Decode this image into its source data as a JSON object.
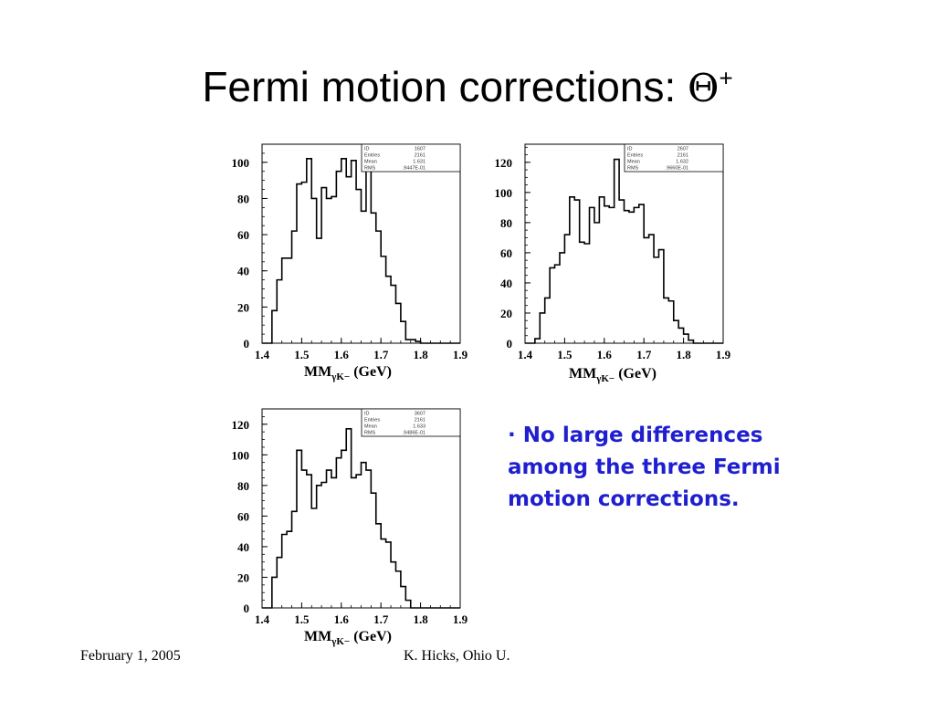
{
  "slide": {
    "title_text": "Fermi motion corrections: ",
    "title_symbol": "Θ",
    "title_sup": "+",
    "bullet_marker": "·",
    "bullet_text": "No large differences among the three Fermi motion corrections.",
    "footer_left": "February 1, 2005",
    "footer_center": "K. Hicks, Ohio U.",
    "colors": {
      "bullet": "#1f1fd0",
      "title": "#000000"
    }
  },
  "chart_data": [
    {
      "type": "bar",
      "xlabel_main": "MM",
      "xlabel_sub": "γK−",
      "xlabel_unit": " (GeV)",
      "xlim": [
        1.4,
        1.9
      ],
      "ylim": [
        0,
        110
      ],
      "xticks": [
        1.4,
        1.5,
        1.6,
        1.7,
        1.8,
        1.9
      ],
      "yticks": [
        0,
        20,
        40,
        60,
        80,
        100
      ],
      "x_start": 1.4,
      "bin_width": 0.0125,
      "values": [
        0,
        0,
        18,
        35,
        47,
        47,
        62,
        88,
        89,
        102,
        80,
        58,
        86,
        80,
        81,
        95,
        102,
        92,
        101,
        85,
        73,
        98,
        72,
        62,
        48,
        37,
        32,
        22,
        12,
        2,
        2,
        1,
        0,
        0,
        0,
        0,
        0,
        0,
        0,
        0
      ],
      "stats": [
        {
          "label": "ID",
          "value": "1607"
        },
        {
          "label": "Entries",
          "value": "2161"
        },
        {
          "label": "Mean",
          "value": "1.631"
        },
        {
          "label": "RMS",
          "value": ".9447E-01"
        }
      ]
    },
    {
      "type": "bar",
      "xlabel_main": "MM",
      "xlabel_sub": "γK−",
      "xlabel_unit": " (GeV)",
      "xlim": [
        1.4,
        1.9
      ],
      "ylim": [
        0,
        132
      ],
      "xticks": [
        1.4,
        1.5,
        1.6,
        1.7,
        1.8,
        1.9
      ],
      "yticks": [
        0,
        20,
        40,
        60,
        80,
        100,
        120
      ],
      "x_start": 1.4,
      "bin_width": 0.0125,
      "values": [
        0,
        0,
        3,
        20,
        30,
        50,
        52,
        60,
        72,
        97,
        95,
        67,
        66,
        90,
        80,
        97,
        91,
        90,
        122,
        95,
        88,
        87,
        90,
        92,
        70,
        72,
        57,
        62,
        30,
        28,
        15,
        10,
        6,
        2,
        0,
        0,
        0,
        0,
        0,
        0
      ],
      "stats": [
        {
          "label": "ID",
          "value": "2607"
        },
        {
          "label": "Entries",
          "value": "2161"
        },
        {
          "label": "Mean",
          "value": "1.632"
        },
        {
          "label": "RMS",
          "value": ".9660E-01"
        }
      ]
    },
    {
      "type": "bar",
      "xlabel_main": "MM",
      "xlabel_sub": "γK−",
      "xlabel_unit": " (GeV)",
      "xlim": [
        1.4,
        1.9
      ],
      "ylim": [
        0,
        130
      ],
      "xticks": [
        1.4,
        1.5,
        1.6,
        1.7,
        1.8,
        1.9
      ],
      "yticks": [
        0,
        20,
        40,
        60,
        80,
        100,
        120
      ],
      "x_start": 1.4,
      "bin_width": 0.0125,
      "values": [
        0,
        0,
        20,
        33,
        48,
        50,
        63,
        103,
        90,
        87,
        65,
        80,
        82,
        90,
        85,
        98,
        103,
        117,
        85,
        87,
        95,
        90,
        75,
        55,
        45,
        43,
        30,
        24,
        14,
        5,
        0,
        0,
        0,
        0,
        0,
        0,
        0,
        0,
        0,
        0
      ],
      "stats": [
        {
          "label": "ID",
          "value": "3607"
        },
        {
          "label": "Entries",
          "value": "2161"
        },
        {
          "label": "Mean",
          "value": "1.633"
        },
        {
          "label": "RMS",
          "value": ".9486E-01"
        }
      ]
    }
  ]
}
